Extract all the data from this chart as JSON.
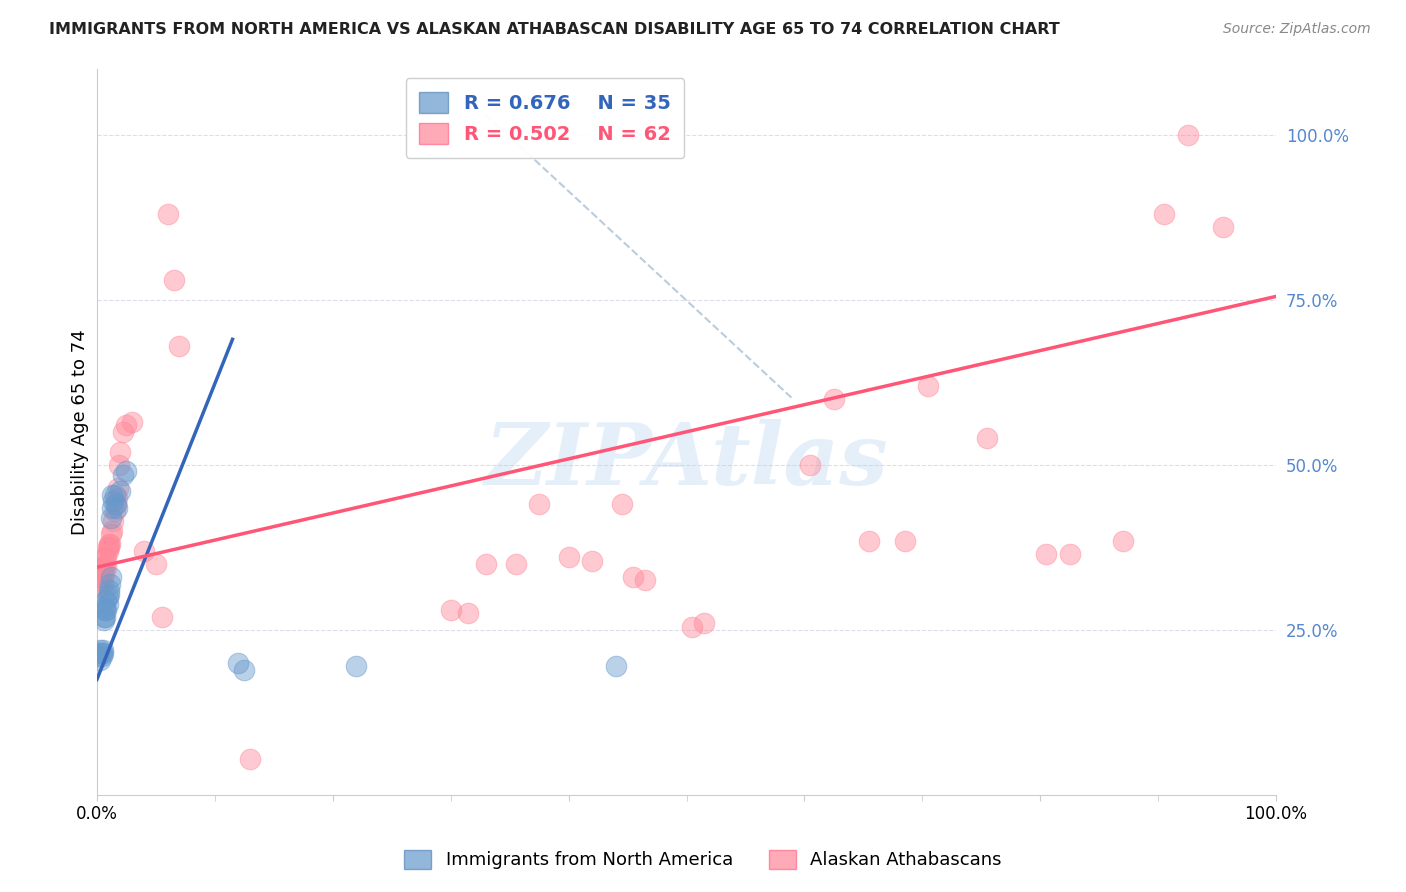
{
  "title": "IMMIGRANTS FROM NORTH AMERICA VS ALASKAN ATHABASCAN DISABILITY AGE 65 TO 74 CORRELATION CHART",
  "source": "Source: ZipAtlas.com",
  "ylabel": "Disability Age 65 to 74",
  "ytick_labels": [
    "25.0%",
    "50.0%",
    "75.0%",
    "100.0%"
  ],
  "ytick_values": [
    0.25,
    0.5,
    0.75,
    1.0
  ],
  "xlim": [
    0.0,
    1.0
  ],
  "ylim": [
    0.0,
    1.1
  ],
  "legend_blue_r": "R = 0.676",
  "legend_blue_n": "N = 35",
  "legend_pink_r": "R = 0.502",
  "legend_pink_n": "N = 62",
  "legend_label_blue": "Immigrants from North America",
  "legend_label_pink": "Alaskan Athabascans",
  "blue_color": "#6699CC",
  "pink_color": "#FF8899",
  "blue_line_color": "#3366BB",
  "pink_line_color": "#FF5577",
  "diag_line_color": "#BBCCDD",
  "watermark": "ZIPAtlas",
  "blue_points": [
    [
      0.001,
      0.21
    ],
    [
      0.002,
      0.215
    ],
    [
      0.003,
      0.205
    ],
    [
      0.003,
      0.22
    ],
    [
      0.004,
      0.215
    ],
    [
      0.004,
      0.21
    ],
    [
      0.005,
      0.22
    ],
    [
      0.005,
      0.215
    ],
    [
      0.006,
      0.27
    ],
    [
      0.006,
      0.265
    ],
    [
      0.007,
      0.27
    ],
    [
      0.007,
      0.28
    ],
    [
      0.007,
      0.285
    ],
    [
      0.008,
      0.28
    ],
    [
      0.008,
      0.295
    ],
    [
      0.009,
      0.29
    ],
    [
      0.009,
      0.3
    ],
    [
      0.01,
      0.305
    ],
    [
      0.01,
      0.31
    ],
    [
      0.011,
      0.32
    ],
    [
      0.012,
      0.33
    ],
    [
      0.012,
      0.42
    ],
    [
      0.013,
      0.435
    ],
    [
      0.013,
      0.455
    ],
    [
      0.014,
      0.445
    ],
    [
      0.015,
      0.455
    ],
    [
      0.016,
      0.44
    ],
    [
      0.017,
      0.435
    ],
    [
      0.02,
      0.46
    ],
    [
      0.022,
      0.485
    ],
    [
      0.025,
      0.49
    ],
    [
      0.12,
      0.2
    ],
    [
      0.125,
      0.19
    ],
    [
      0.22,
      0.195
    ],
    [
      0.44,
      0.195
    ]
  ],
  "pink_points": [
    [
      0.001,
      0.33
    ],
    [
      0.002,
      0.34
    ],
    [
      0.003,
      0.315
    ],
    [
      0.003,
      0.325
    ],
    [
      0.004,
      0.335
    ],
    [
      0.004,
      0.345
    ],
    [
      0.005,
      0.33
    ],
    [
      0.005,
      0.32
    ],
    [
      0.006,
      0.335
    ],
    [
      0.006,
      0.345
    ],
    [
      0.007,
      0.35
    ],
    [
      0.007,
      0.36
    ],
    [
      0.008,
      0.345
    ],
    [
      0.008,
      0.36
    ],
    [
      0.009,
      0.37
    ],
    [
      0.009,
      0.375
    ],
    [
      0.01,
      0.375
    ],
    [
      0.01,
      0.38
    ],
    [
      0.011,
      0.38
    ],
    [
      0.012,
      0.395
    ],
    [
      0.013,
      0.4
    ],
    [
      0.014,
      0.415
    ],
    [
      0.015,
      0.43
    ],
    [
      0.016,
      0.44
    ],
    [
      0.017,
      0.45
    ],
    [
      0.018,
      0.465
    ],
    [
      0.019,
      0.5
    ],
    [
      0.02,
      0.52
    ],
    [
      0.022,
      0.55
    ],
    [
      0.025,
      0.56
    ],
    [
      0.03,
      0.565
    ],
    [
      0.04,
      0.37
    ],
    [
      0.05,
      0.35
    ],
    [
      0.055,
      0.27
    ],
    [
      0.06,
      0.88
    ],
    [
      0.065,
      0.78
    ],
    [
      0.07,
      0.68
    ],
    [
      0.13,
      0.055
    ],
    [
      0.3,
      0.28
    ],
    [
      0.315,
      0.275
    ],
    [
      0.33,
      0.35
    ],
    [
      0.355,
      0.35
    ],
    [
      0.375,
      0.44
    ],
    [
      0.4,
      0.36
    ],
    [
      0.42,
      0.355
    ],
    [
      0.445,
      0.44
    ],
    [
      0.455,
      0.33
    ],
    [
      0.465,
      0.325
    ],
    [
      0.505,
      0.255
    ],
    [
      0.515,
      0.26
    ],
    [
      0.605,
      0.5
    ],
    [
      0.625,
      0.6
    ],
    [
      0.655,
      0.385
    ],
    [
      0.685,
      0.385
    ],
    [
      0.705,
      0.62
    ],
    [
      0.755,
      0.54
    ],
    [
      0.805,
      0.365
    ],
    [
      0.825,
      0.365
    ],
    [
      0.87,
      0.385
    ],
    [
      0.905,
      0.88
    ],
    [
      0.925,
      1.0
    ],
    [
      0.955,
      0.86
    ]
  ],
  "blue_line_x": [
    0.0,
    0.115
  ],
  "blue_line_y": [
    0.175,
    0.69
  ],
  "pink_line_x": [
    0.0,
    1.0
  ],
  "pink_line_y": [
    0.345,
    0.755
  ],
  "diag_line_x": [
    0.33,
    0.59
  ],
  "diag_line_y": [
    1.03,
    0.6
  ]
}
